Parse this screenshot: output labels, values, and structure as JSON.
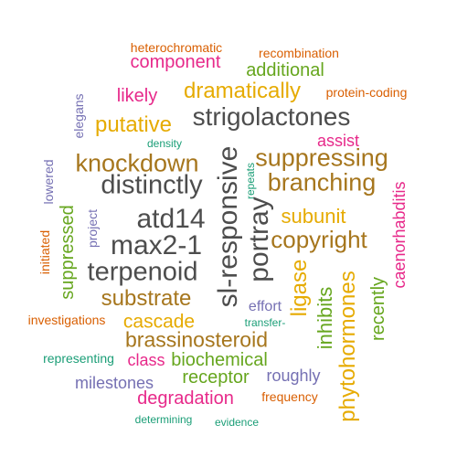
{
  "colors": {
    "magenta": "#e7298a",
    "orange": "#d95f02",
    "green": "#66a61e",
    "gold": "#e6ab02",
    "gray": "#4d4d4d",
    "brown": "#a6761d",
    "purple": "#7570b3",
    "teal": "#1b9e77"
  },
  "words": {
    "heterochromatic": "heterochromatic",
    "recombination": "recombination",
    "component": "component",
    "additional": "additional",
    "elegans": "elegans",
    "likely": "likely",
    "dramatically": "dramatically",
    "protein_coding": "protein-coding",
    "putative": "putative",
    "strigolactones": "strigolactones",
    "density": "density",
    "assist": "assist",
    "sl_responsive": "sl-responsive",
    "knockdown": "knockdown",
    "suppressing": "suppressing",
    "lowered": "lowered",
    "repeats": "repeats",
    "distinctly": "distinctly",
    "branching": "branching",
    "caenorhabditis": "caenorhabditis",
    "suppressed": "suppressed",
    "project": "project",
    "atd14": "atd14",
    "portray": "portray",
    "subunit": "subunit",
    "initiated": "initiated",
    "max2_1": "max2-1",
    "copyright": "copyright",
    "terpenoid": "terpenoid",
    "ligase": "ligase",
    "phytohormones": "phytohormones",
    "inhibits": "inhibits",
    "recently": "recently",
    "substrate": "substrate",
    "effort": "effort",
    "investigations": "investigations",
    "cascade": "cascade",
    "transfer": "transfer-",
    "brassinosteroid": "brassinosteroid",
    "representing": "representing",
    "class": "class",
    "biochemical": "biochemical",
    "receptor": "receptor",
    "roughly": "roughly",
    "milestones": "milestones",
    "degradation": "degradation",
    "frequency": "frequency",
    "determining": "determining",
    "evidence": "evidence"
  }
}
